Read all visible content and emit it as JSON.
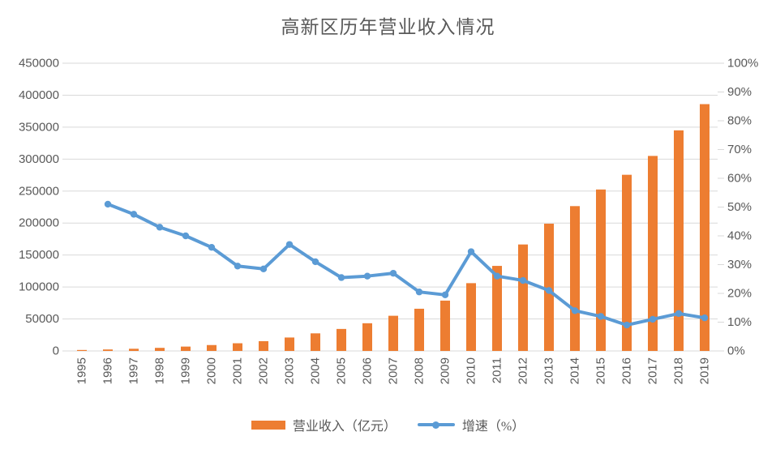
{
  "title": "高新区历年营业收入情况",
  "colors": {
    "bar": "#ED7D31",
    "line": "#5B9BD5",
    "text": "#595959",
    "grid": "#D9D9D9",
    "background": "#FFFFFF"
  },
  "legend": {
    "revenue_label": "营业收入（亿元）",
    "growth_label": "增速（%）"
  },
  "chart_data": {
    "type": "bar+line",
    "title": "高新区历年营业收入情况",
    "categories": [
      "1995",
      "1996",
      "1997",
      "1998",
      "1999",
      "2000",
      "2001",
      "2002",
      "2003",
      "2004",
      "2005",
      "2006",
      "2007",
      "2008",
      "2009",
      "2010",
      "2011",
      "2012",
      "2013",
      "2014",
      "2015",
      "2016",
      "2017",
      "2018",
      "2019"
    ],
    "series": [
      {
        "name": "营业收入（亿元）",
        "type": "bar",
        "axis": "left",
        "color": "#ED7D31",
        "values": [
          1500,
          2300,
          3400,
          4800,
          6800,
          9200,
          12000,
          15300,
          21000,
          27500,
          34400,
          43300,
          55000,
          66000,
          78700,
          106000,
          133000,
          166500,
          199000,
          226500,
          252500,
          275500,
          305000,
          345000,
          386000
        ]
      },
      {
        "name": "增速（%）",
        "type": "line",
        "axis": "right",
        "color": "#5B9BD5",
        "values": [
          null,
          51,
          47.5,
          43,
          40,
          36,
          29.5,
          28.5,
          37,
          31,
          25.5,
          26,
          27,
          20.5,
          19.5,
          34.5,
          26,
          24.5,
          21,
          14,
          12,
          9,
          11,
          13,
          11.5
        ]
      }
    ],
    "left_axis": {
      "min": 0,
      "max": 450000,
      "step": 50000,
      "tick_labels": [
        "0",
        "50000",
        "100000",
        "150000",
        "200000",
        "250000",
        "300000",
        "350000",
        "400000",
        "450000"
      ]
    },
    "right_axis": {
      "min": 0,
      "max": 100,
      "step": 10,
      "tick_labels": [
        "0%",
        "10%",
        "20%",
        "30%",
        "40%",
        "50%",
        "60%",
        "70%",
        "80%",
        "90%",
        "100%"
      ]
    },
    "grid": true,
    "legend_position": "bottom"
  }
}
